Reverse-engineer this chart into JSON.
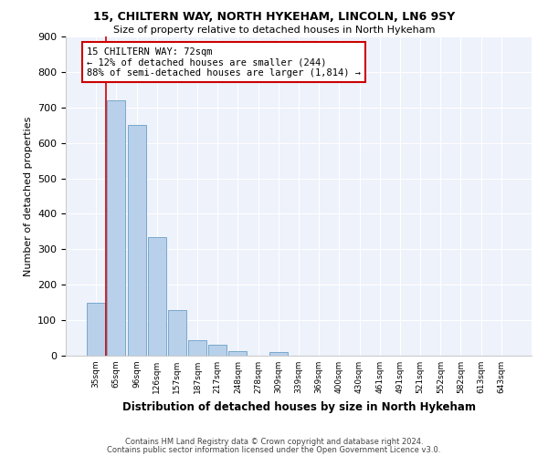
{
  "title1": "15, CHILTERN WAY, NORTH HYKEHAM, LINCOLN, LN6 9SY",
  "title2": "Size of property relative to detached houses in North Hykeham",
  "xlabel": "Distribution of detached houses by size in North Hykeham",
  "ylabel": "Number of detached properties",
  "categories": [
    "35sqm",
    "65sqm",
    "96sqm",
    "126sqm",
    "157sqm",
    "187sqm",
    "217sqm",
    "248sqm",
    "278sqm",
    "309sqm",
    "339sqm",
    "369sqm",
    "400sqm",
    "430sqm",
    "461sqm",
    "491sqm",
    "521sqm",
    "552sqm",
    "582sqm",
    "613sqm",
    "643sqm"
  ],
  "values": [
    150,
    720,
    650,
    335,
    128,
    45,
    32,
    12,
    0,
    10,
    0,
    0,
    0,
    0,
    0,
    0,
    0,
    0,
    0,
    0,
    0
  ],
  "bar_color": "#b8d0ea",
  "bar_edge_color": "#6a9fc8",
  "background_color": "#eef2fb",
  "grid_color": "#ffffff",
  "property_line_x": 0.5,
  "property_line_color": "#cc0000",
  "annotation_text": "15 CHILTERN WAY: 72sqm\n← 12% of detached houses are smaller (244)\n88% of semi-detached houses are larger (1,814) →",
  "annotation_box_color": "#cc0000",
  "ylim": [
    0,
    900
  ],
  "yticks": [
    0,
    100,
    200,
    300,
    400,
    500,
    600,
    700,
    800,
    900
  ],
  "footer1": "Contains HM Land Registry data © Crown copyright and database right 2024.",
  "footer2": "Contains public sector information licensed under the Open Government Licence v3.0."
}
